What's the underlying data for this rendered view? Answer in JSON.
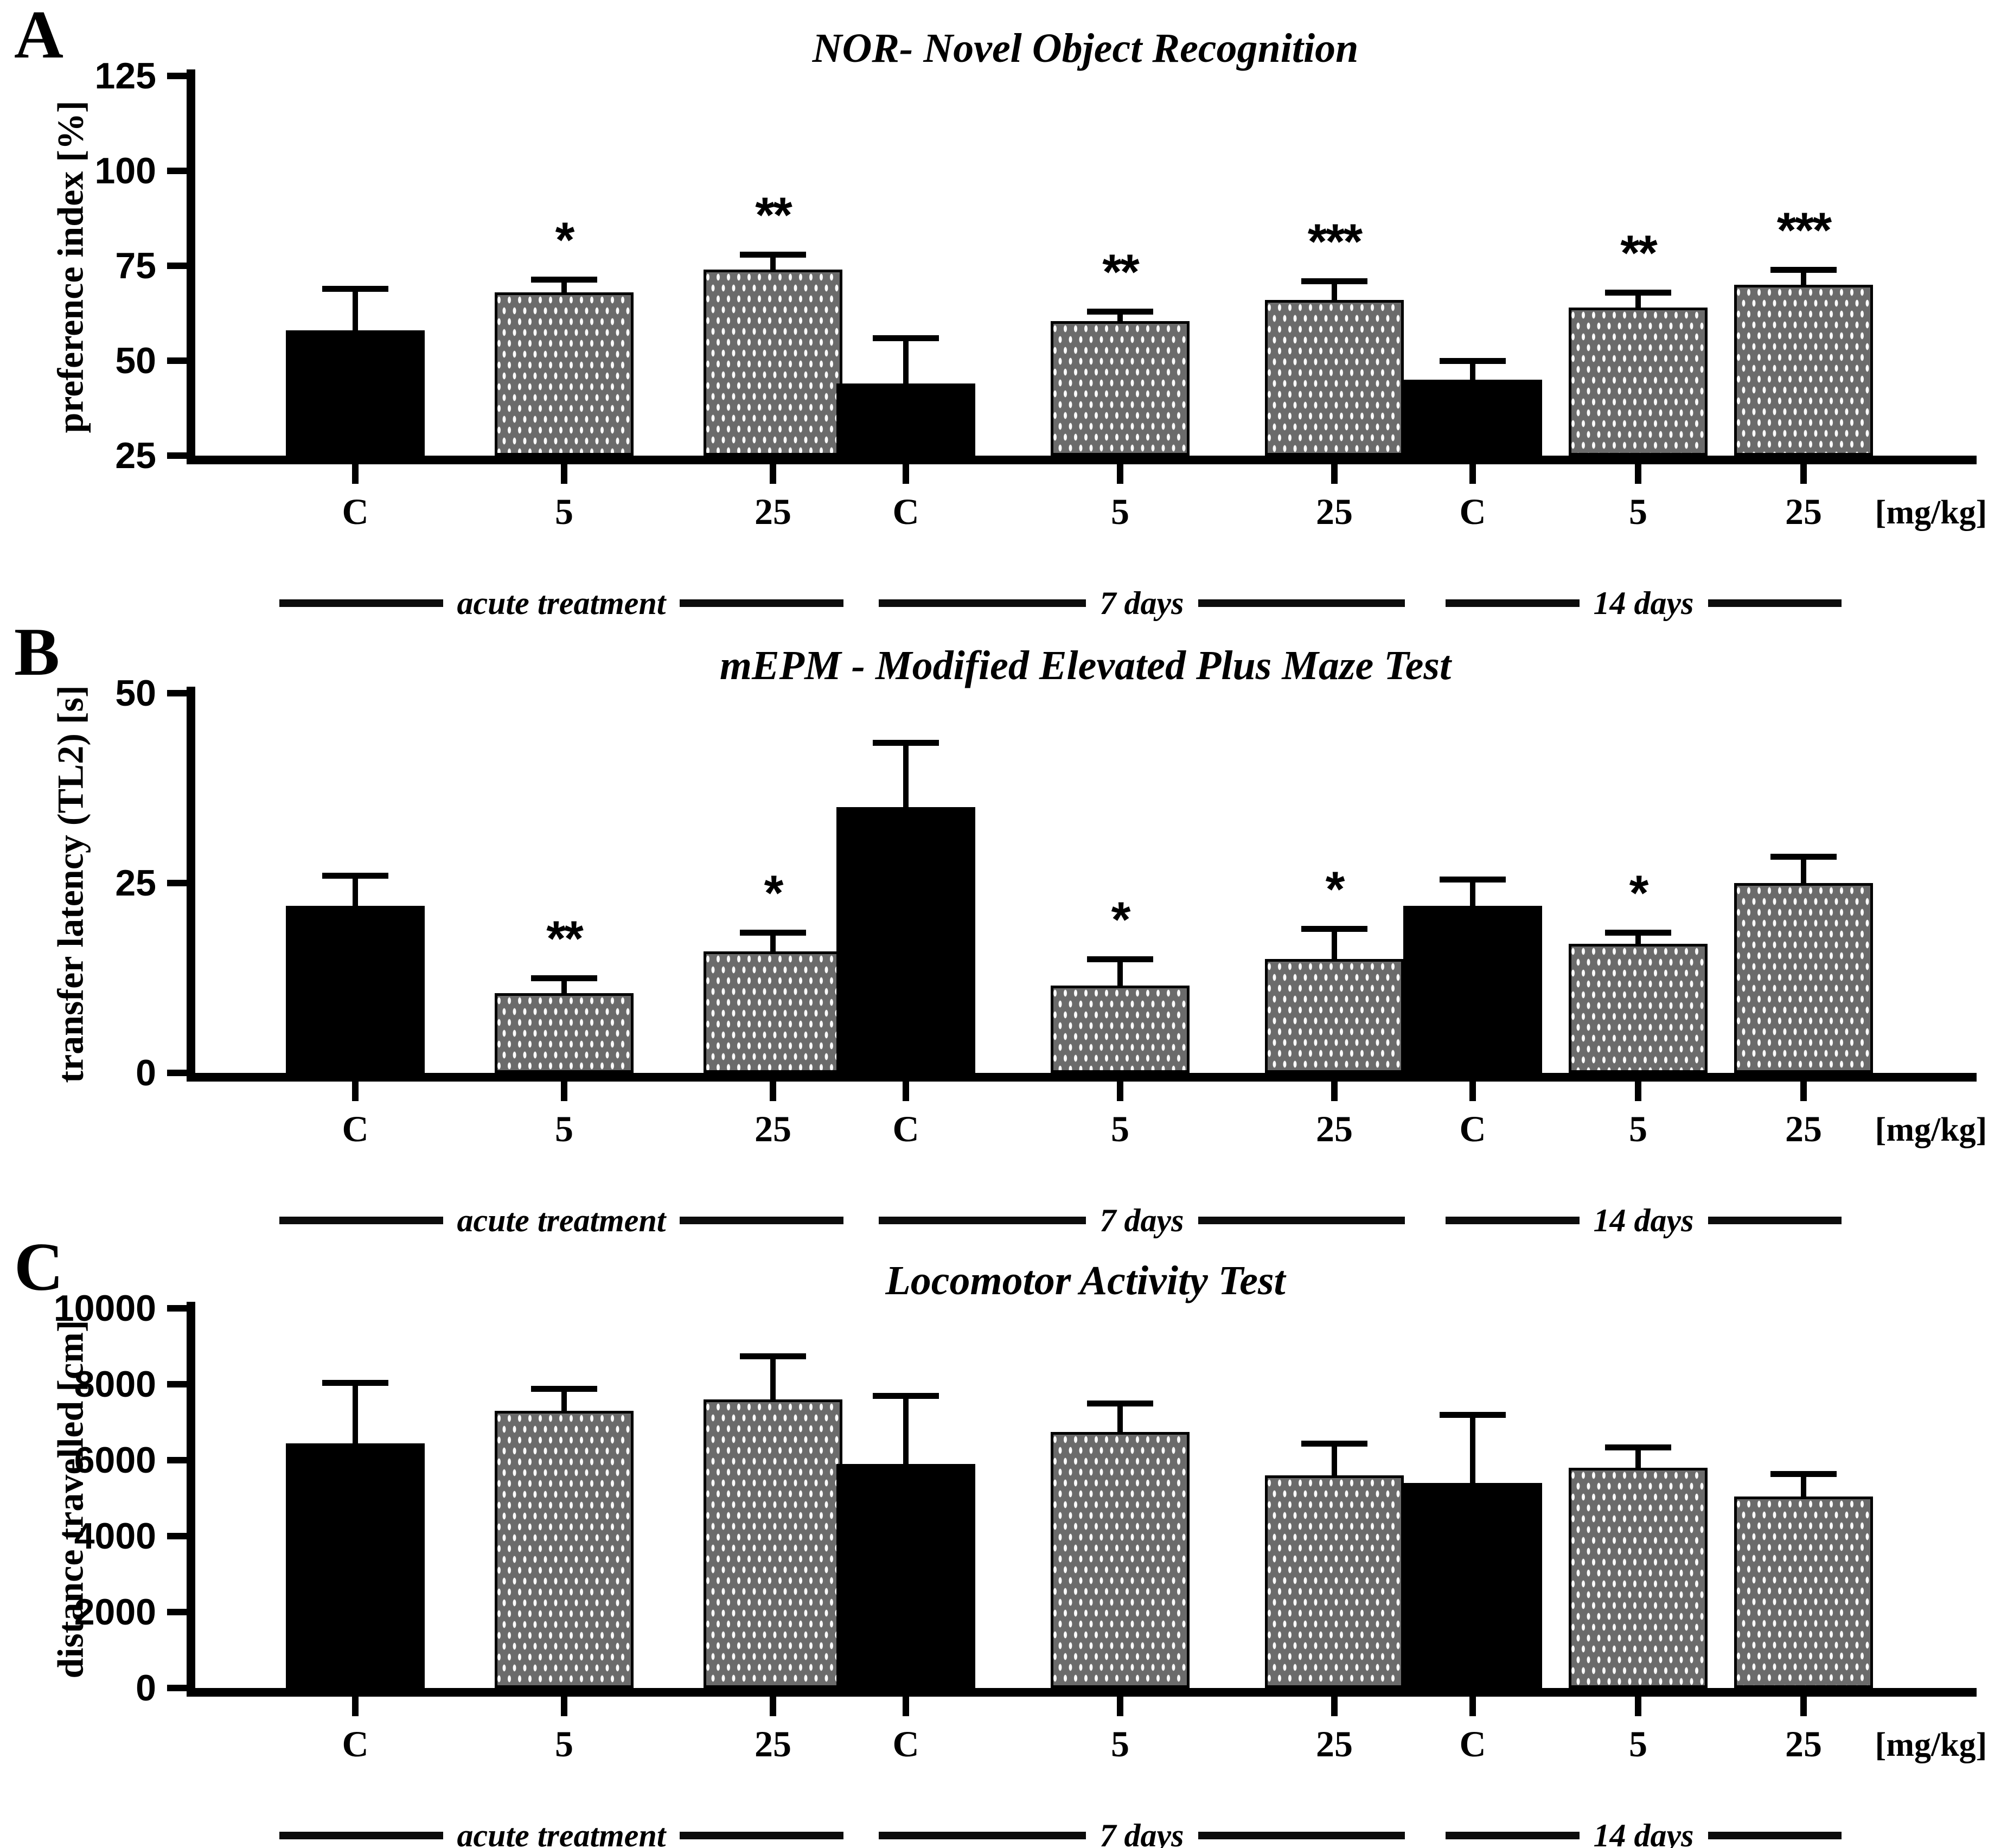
{
  "figure": {
    "background": "#ffffff",
    "axis_color": "#000000",
    "control_bar_color": "#000000",
    "treated_bar_color": "#6b6b6b",
    "dot_color": "#ffffff",
    "unit_label": "[mg/kg]",
    "categories": [
      "C",
      "5",
      "25"
    ],
    "group_labels": [
      "acute treatment",
      "7 days",
      "14 days"
    ]
  },
  "chart_data": [
    {
      "type": "bar",
      "letter": "A",
      "title": "NOR- Novel Object Recognition",
      "ylabel": "preference index [%]",
      "ylim": [
        25,
        125
      ],
      "yticks": [
        25,
        50,
        75,
        100,
        125
      ],
      "unit_label": "[mg/kg]",
      "grid": false,
      "groups": [
        {
          "label": "acute treatment",
          "bars": [
            {
              "x": "C",
              "value": 58,
              "err_top": 69,
              "sig": "",
              "style": "control"
            },
            {
              "x": "5",
              "value": 68,
              "err_top": 71.5,
              "sig": "*",
              "style": "treated"
            },
            {
              "x": "25",
              "value": 74,
              "err_top": 78,
              "sig": "**",
              "style": "treated"
            }
          ]
        },
        {
          "label": "7 days",
          "bars": [
            {
              "x": "C",
              "value": 44,
              "err_top": 56,
              "sig": "",
              "style": "control"
            },
            {
              "x": "5",
              "value": 60.5,
              "err_top": 63,
              "sig": "**",
              "style": "treated"
            },
            {
              "x": "25",
              "value": 66,
              "err_top": 71,
              "sig": "***",
              "style": "treated"
            }
          ]
        },
        {
          "label": "14 days",
          "bars": [
            {
              "x": "C",
              "value": 45,
              "err_top": 50,
              "sig": "",
              "style": "control"
            },
            {
              "x": "5",
              "value": 64,
              "err_top": 68,
              "sig": "**",
              "style": "treated"
            },
            {
              "x": "25",
              "value": 70,
              "err_top": 74,
              "sig": "***",
              "style": "treated"
            }
          ]
        }
      ]
    },
    {
      "type": "bar",
      "letter": "B",
      "title": "mEPM - Modified Elevated Plus Maze Test",
      "ylabel": "transfer latency (TL2) [s]",
      "ylim": [
        0,
        50
      ],
      "yticks": [
        0,
        25,
        50
      ],
      "unit_label": "[mg/kg]",
      "grid": false,
      "groups": [
        {
          "label": "acute treatment",
          "bars": [
            {
              "x": "C",
              "value": 22,
              "err_top": 26,
              "sig": "",
              "style": "control"
            },
            {
              "x": "5",
              "value": 10.5,
              "err_top": 12.5,
              "sig": "**",
              "style": "treated"
            },
            {
              "x": "25",
              "value": 16,
              "err_top": 18.5,
              "sig": "*",
              "style": "treated"
            }
          ]
        },
        {
          "label": "7 days",
          "bars": [
            {
              "x": "C",
              "value": 35,
              "err_top": 43.5,
              "sig": "",
              "style": "control"
            },
            {
              "x": "5",
              "value": 11.5,
              "err_top": 15,
              "sig": "*",
              "style": "treated"
            },
            {
              "x": "25",
              "value": 15,
              "err_top": 19,
              "sig": "*",
              "style": "treated"
            }
          ]
        },
        {
          "label": "14 days",
          "bars": [
            {
              "x": "C",
              "value": 22,
              "err_top": 25.5,
              "sig": "",
              "style": "control"
            },
            {
              "x": "5",
              "value": 17,
              "err_top": 18.5,
              "sig": "*",
              "style": "treated"
            },
            {
              "x": "25",
              "value": 25,
              "err_top": 28.5,
              "sig": "",
              "style": "treated"
            }
          ]
        }
      ]
    },
    {
      "type": "bar",
      "letter": "C",
      "title": "Locomotor Activity Test",
      "ylabel": "distance travelled [cm]",
      "ylim": [
        0,
        10000
      ],
      "yticks": [
        0,
        2000,
        4000,
        6000,
        8000,
        10000
      ],
      "unit_label": "[mg/kg]",
      "grid": false,
      "groups": [
        {
          "label": "acute treatment",
          "bars": [
            {
              "x": "C",
              "value": 6450,
              "err_top": 8050,
              "sig": "",
              "style": "control"
            },
            {
              "x": "5",
              "value": 7300,
              "err_top": 7880,
              "sig": "",
              "style": "treated"
            },
            {
              "x": "25",
              "value": 7600,
              "err_top": 8750,
              "sig": "",
              "style": "treated"
            }
          ]
        },
        {
          "label": "7 days",
          "bars": [
            {
              "x": "C",
              "value": 5900,
              "err_top": 7700,
              "sig": "",
              "style": "control"
            },
            {
              "x": "5",
              "value": 6750,
              "err_top": 7500,
              "sig": "",
              "style": "treated"
            },
            {
              "x": "25",
              "value": 5600,
              "err_top": 6450,
              "sig": "",
              "style": "treated"
            }
          ]
        },
        {
          "label": "14 days",
          "bars": [
            {
              "x": "C",
              "value": 5400,
              "err_top": 7200,
              "sig": "",
              "style": "control"
            },
            {
              "x": "5",
              "value": 5800,
              "err_top": 6350,
              "sig": "",
              "style": "treated"
            },
            {
              "x": "25",
              "value": 5050,
              "err_top": 5650,
              "sig": "",
              "style": "treated"
            }
          ]
        }
      ]
    }
  ]
}
